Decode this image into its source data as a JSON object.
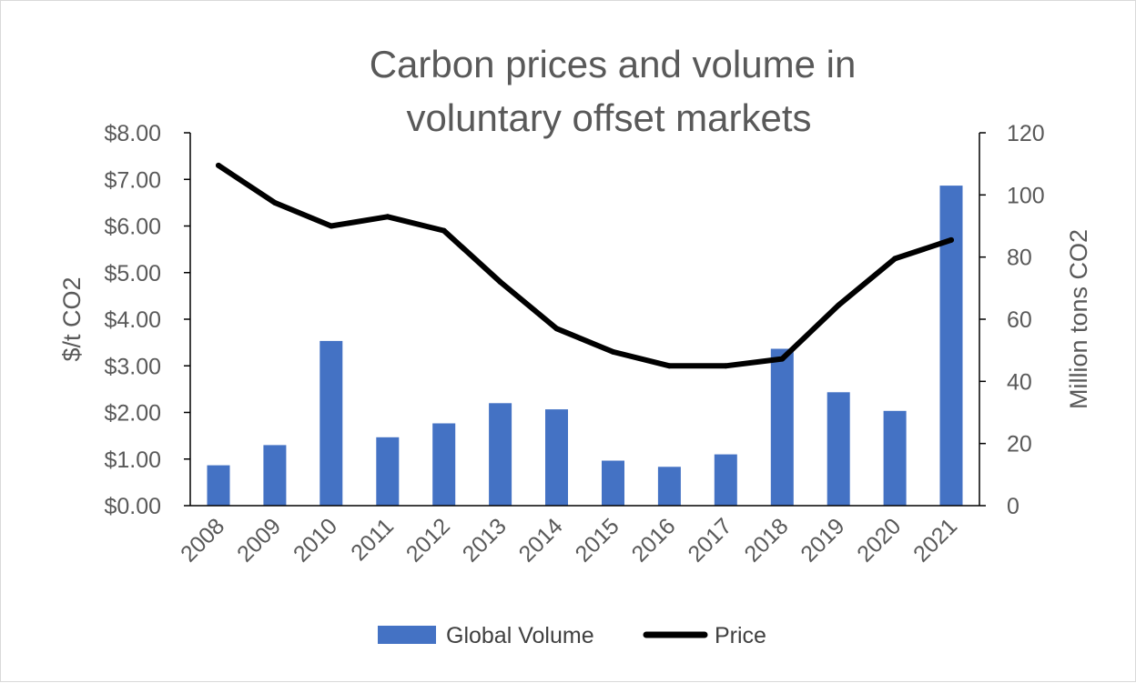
{
  "chart_data": {
    "type": "bar",
    "title_lines": [
      "Carbon prices and volume in",
      "voluntary offset markets"
    ],
    "categories": [
      "2008",
      "2009",
      "2010",
      "2011",
      "2012",
      "2013",
      "2014",
      "2015",
      "2016",
      "2017",
      "2018",
      "2019",
      "2020",
      "2021"
    ],
    "series": [
      {
        "name": "Global Volume",
        "type": "bar",
        "axis": "right",
        "color": "#4472c4",
        "values": [
          13,
          19.5,
          53,
          22,
          26.5,
          33,
          31,
          14.5,
          12.5,
          16.5,
          50.5,
          36.5,
          30.5,
          103
        ]
      },
      {
        "name": "Price",
        "type": "line",
        "axis": "left",
        "color": "#000000",
        "values": [
          7.3,
          6.5,
          6.0,
          6.2,
          5.9,
          4.8,
          3.8,
          3.3,
          3.0,
          3.0,
          3.15,
          4.3,
          5.3,
          5.7
        ]
      }
    ],
    "y_left": {
      "label": "$/t CO2",
      "range": [
        0,
        8
      ],
      "ticks": [
        "$0.00",
        "$1.00",
        "$2.00",
        "$3.00",
        "$4.00",
        "$5.00",
        "$6.00",
        "$7.00",
        "$8.00"
      ]
    },
    "y_right": {
      "label": "Million tons CO2",
      "range": [
        0,
        120
      ],
      "ticks": [
        "0",
        "20",
        "40",
        "60",
        "80",
        "100",
        "120"
      ]
    },
    "grid": false,
    "legend_position": "bottom"
  }
}
